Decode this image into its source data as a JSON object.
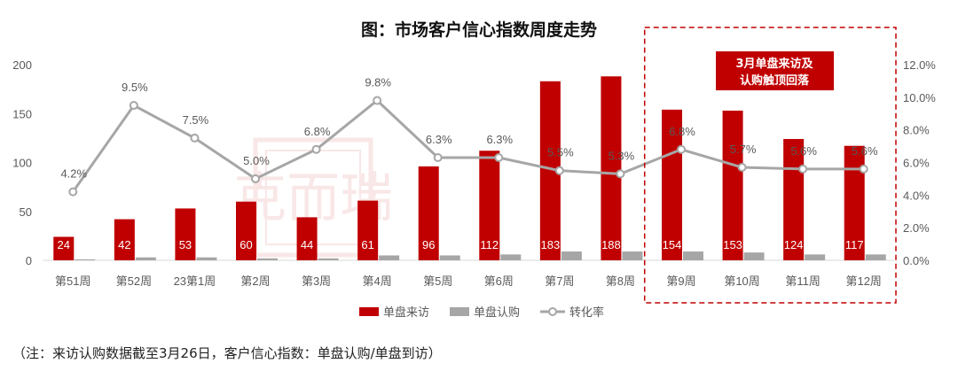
{
  "chart_data": {
    "type": "bar+line",
    "title": "图：市场客户信心指数周度走势",
    "categories": [
      "第51周",
      "第52周",
      "23第1周",
      "第2周",
      "第3周",
      "第4周",
      "第5周",
      "第6周",
      "第7周",
      "第8周",
      "第9周",
      "第10周",
      "第11周",
      "第12周"
    ],
    "series": [
      {
        "name": "单盘来访",
        "type": "bar",
        "axis": "left",
        "color": "#C00000",
        "values": [
          24,
          42,
          53,
          60,
          44,
          61,
          96,
          112,
          183,
          188,
          154,
          153,
          124,
          117
        ]
      },
      {
        "name": "单盘认购",
        "type": "bar",
        "axis": "left",
        "color": "#A6A6A6",
        "values": [
          1,
          3,
          3,
          2,
          2,
          5,
          5,
          6,
          9,
          9,
          9,
          8,
          6,
          6
        ]
      },
      {
        "name": "转化率",
        "type": "line",
        "axis": "right",
        "color": "#A6A6A6",
        "values": [
          4.2,
          9.5,
          7.5,
          5.0,
          6.8,
          9.8,
          6.3,
          6.3,
          5.5,
          5.3,
          6.8,
          5.7,
          5.6,
          5.6
        ],
        "labels": [
          "4.2%",
          "9.5%",
          "7.5%",
          "5.0%",
          "6.8%",
          "9.8%",
          "6.3%",
          "6.3%",
          "5.5%",
          "5.3%",
          "6.8%",
          "5.7%",
          "5.6%",
          "5.6%"
        ]
      }
    ],
    "y_left": {
      "ylim": [
        0,
        200
      ],
      "ticks": [
        "0",
        "50",
        "100",
        "150",
        "200"
      ]
    },
    "y_right": {
      "ylim": [
        0,
        12
      ],
      "ticks": [
        "0.0%",
        "2.0%",
        "4.0%",
        "6.0%",
        "8.0%",
        "10.0%",
        "12.0%"
      ]
    },
    "legend": {
      "position": "bottom"
    },
    "callout": {
      "lines": [
        "3月单盘来访及",
        "认购触顶回落"
      ],
      "color": "#C00000"
    },
    "grid": false
  },
  "watermark": "克而瑞",
  "note": "（注：来访认购数据截至3月26日，客户信心指数：单盘认购/单盘到访）"
}
